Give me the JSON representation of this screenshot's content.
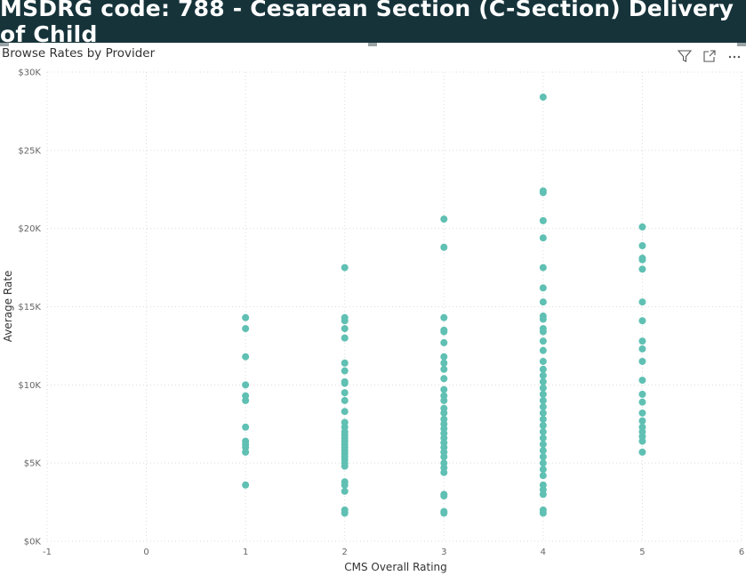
{
  "header": {
    "title": "MSDRG code: 788 - Cesarean Section (C-Section) Delivery of Child"
  },
  "visual": {
    "title": "Browse Rates by Provider",
    "toolbar": {
      "filter_icon": "filter-icon",
      "focus_icon": "focus-mode-icon",
      "more_icon": "more-options-icon"
    }
  },
  "colors": {
    "marker": "#5fc0b3",
    "header_bg": "#16333a",
    "grid": "#dcdcdc",
    "axis_text": "#666666"
  },
  "chart_data": {
    "type": "scatter",
    "xlabel": "CMS Overall Rating",
    "ylabel": "Average Rate",
    "xlim": [
      -1,
      6
    ],
    "ylim": [
      0,
      30000
    ],
    "xticks": [
      -1,
      0,
      1,
      2,
      3,
      4,
      5,
      6
    ],
    "yticks": [
      0,
      5000,
      10000,
      15000,
      20000,
      25000,
      30000
    ],
    "ytick_labels": [
      "$0K",
      "$5K",
      "$10K",
      "$15K",
      "$20K",
      "$25K",
      "$30K"
    ],
    "grid": true,
    "series": [
      {
        "x": 1,
        "values": [
          14300,
          13600,
          11800,
          10000,
          9300,
          9000,
          7300,
          6400,
          6200,
          6000,
          5700,
          3600
        ]
      },
      {
        "x": 2,
        "values": [
          17500,
          14300,
          14100,
          13600,
          13000,
          11400,
          10900,
          10200,
          10100,
          9500,
          9000,
          8300,
          7600,
          7300,
          7000,
          6800,
          6600,
          6400,
          6200,
          6000,
          5800,
          5600,
          5400,
          5200,
          5000,
          4800,
          3800,
          3600,
          3200,
          2000,
          1800
        ]
      },
      {
        "x": 3,
        "values": [
          20600,
          18800,
          14300,
          13500,
          13400,
          12700,
          11800,
          11400,
          11000,
          10400,
          9700,
          9300,
          9000,
          8500,
          8200,
          7800,
          7500,
          7200,
          6900,
          6600,
          6300,
          6000,
          5700,
          5400,
          5000,
          4700,
          4400,
          3000,
          2900,
          1900,
          1800
        ]
      },
      {
        "x": 4,
        "values": [
          28400,
          22400,
          22300,
          20500,
          19400,
          17500,
          16200,
          15300,
          14400,
          14200,
          13600,
          13400,
          12800,
          12200,
          11500,
          11000,
          10600,
          10200,
          9800,
          9400,
          9000,
          8600,
          8200,
          7800,
          7400,
          7000,
          6600,
          6200,
          5800,
          5400,
          5000,
          4600,
          4200,
          3600,
          3300,
          3000,
          2000,
          1800
        ]
      },
      {
        "x": 5,
        "values": [
          20100,
          18900,
          18100,
          18000,
          17400,
          15300,
          14100,
          12800,
          12300,
          11500,
          10300,
          9400,
          8900,
          8200,
          7700,
          7300,
          7000,
          6700,
          6400,
          5700
        ]
      }
    ]
  }
}
